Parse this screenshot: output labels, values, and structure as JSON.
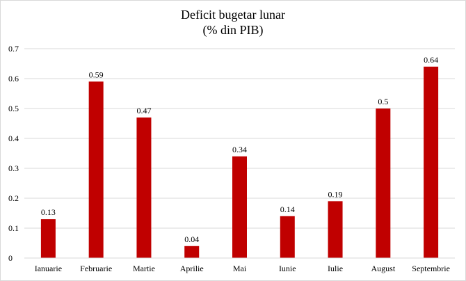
{
  "chart_data": {
    "type": "bar",
    "title": "Deficit  bugetar lunar",
    "subtitle": "(% din PIB)",
    "categories": [
      "Ianuarie",
      "Februarie",
      "Martie",
      "Aprilie",
      "Mai",
      "Iunie",
      "Iulie",
      "August",
      "Septembrie"
    ],
    "values": [
      0.13,
      0.59,
      0.47,
      0.04,
      0.34,
      0.14,
      0.19,
      0.5,
      0.64
    ],
    "data_labels": [
      "0.13",
      "0.59",
      "0.47",
      "0.04",
      "0.34",
      "0.14",
      "0.19",
      "0.5",
      "0.64"
    ],
    "ylim": [
      0,
      0.7
    ],
    "yticks": [
      "0",
      "0.1",
      "0.2",
      "0.3",
      "0.4",
      "0.5",
      "0.6",
      "0.7"
    ],
    "grid": true,
    "legend": false,
    "bar_color": "#c00000",
    "grid_color": "#d9d9d9"
  }
}
